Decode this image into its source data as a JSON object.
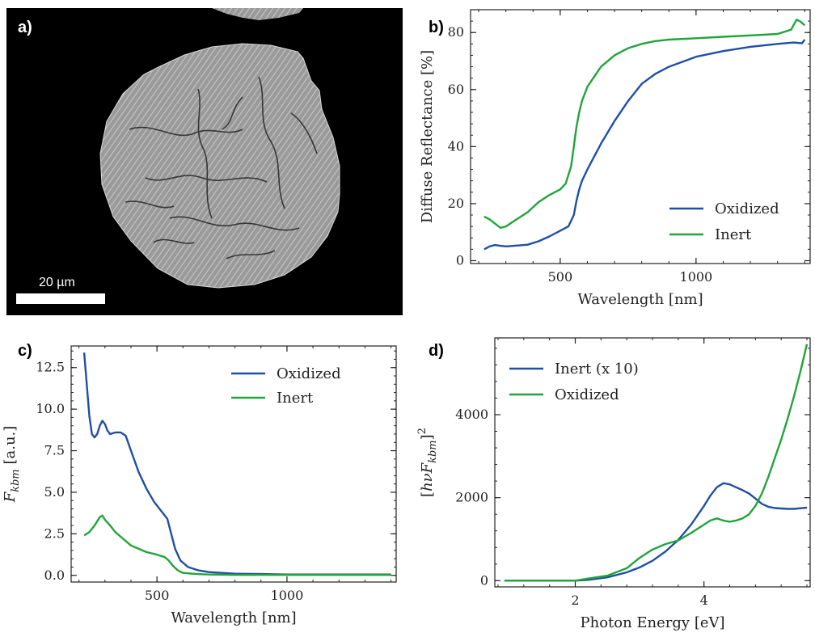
{
  "panels": [
    {
      "id": "a",
      "label": "a)"
    },
    {
      "id": "b",
      "label": "b)"
    },
    {
      "id": "c",
      "label": "c)"
    },
    {
      "id": "d",
      "label": "d)"
    }
  ],
  "micrograph": {
    "scale_bar_label": "20 µm"
  },
  "colors": {
    "oxidized": "#1f4fa5",
    "inert": "#22a43a",
    "axis": "#222222"
  },
  "chart_data": [
    {
      "panel": "b",
      "type": "line",
      "xlabel": "Wavelength [nm]",
      "ylabel": "Diffuse Reflectance [%]",
      "xlim": [
        170,
        1420
      ],
      "ylim": [
        -1,
        88
      ],
      "xticks": [
        500,
        1000
      ],
      "yticks": [
        0,
        20,
        40,
        60,
        80
      ],
      "legend_position": "bottom-right",
      "series": [
        {
          "name": "Oxidized",
          "color": "#1f4fa5",
          "x": [
            220,
            240,
            260,
            280,
            300,
            340,
            380,
            420,
            460,
            500,
            530,
            550,
            560,
            570,
            580,
            600,
            650,
            700,
            750,
            800,
            850,
            900,
            1000,
            1100,
            1200,
            1300,
            1360,
            1390,
            1400
          ],
          "y": [
            4,
            5,
            5.5,
            5.2,
            5,
            5.3,
            5.6,
            6.8,
            8.5,
            10.5,
            12,
            16,
            21,
            25,
            28,
            32,
            41,
            49,
            56,
            62,
            65.5,
            68,
            71.5,
            73.5,
            75,
            76,
            76.5,
            76.2,
            77.5
          ]
        },
        {
          "name": "Inert",
          "color": "#22a43a",
          "x": [
            220,
            240,
            260,
            280,
            300,
            340,
            380,
            420,
            460,
            500,
            520,
            540,
            550,
            560,
            570,
            580,
            600,
            650,
            700,
            750,
            800,
            850,
            900,
            1000,
            1100,
            1200,
            1300,
            1350,
            1370,
            1385,
            1400
          ],
          "y": [
            15.5,
            14.5,
            13,
            11.5,
            12,
            14.5,
            17,
            20.5,
            23,
            25,
            27,
            33,
            40,
            47,
            52,
            56,
            61,
            68,
            72,
            74.5,
            76,
            77,
            77.5,
            78,
            78.5,
            79,
            79.5,
            81,
            84.5,
            83.8,
            82.5
          ]
        }
      ]
    },
    {
      "panel": "c",
      "type": "line",
      "xlabel": "Wavelength [nm]",
      "ylabel": "F_kbm [a.u.]",
      "xlim": [
        170,
        1420
      ],
      "ylim": [
        -0.4,
        13.8
      ],
      "xticks": [
        500,
        1000
      ],
      "yticks": [
        0.0,
        2.5,
        5.0,
        7.5,
        10.0,
        12.5
      ],
      "ytick_labels": [
        "0.0",
        "2.5",
        "5.0",
        "7.5",
        "10.0",
        "12.5"
      ],
      "legend_position": "top-right",
      "series": [
        {
          "name": "Oxidized",
          "color": "#1f4fa5",
          "x": [
            220,
            230,
            240,
            250,
            260,
            270,
            280,
            290,
            300,
            310,
            320,
            340,
            360,
            380,
            400,
            430,
            460,
            490,
            520,
            540,
            555,
            570,
            590,
            620,
            660,
            700,
            800,
            900,
            1000,
            1200,
            1400
          ],
          "y": [
            13.4,
            11.5,
            9.6,
            8.5,
            8.3,
            8.5,
            9.0,
            9.3,
            9.1,
            8.7,
            8.5,
            8.6,
            8.6,
            8.4,
            7.5,
            6.2,
            5.2,
            4.4,
            3.8,
            3.4,
            2.5,
            1.6,
            0.9,
            0.5,
            0.3,
            0.2,
            0.1,
            0.08,
            0.05,
            0.05,
            0.05
          ]
        },
        {
          "name": "Inert",
          "color": "#22a43a",
          "x": [
            220,
            240,
            260,
            280,
            290,
            300,
            320,
            340,
            370,
            400,
            430,
            460,
            500,
            530,
            545,
            560,
            580,
            600,
            650,
            700,
            800,
            1000,
            1200,
            1400
          ],
          "y": [
            2.4,
            2.6,
            3.0,
            3.5,
            3.6,
            3.35,
            3.0,
            2.6,
            2.2,
            1.8,
            1.6,
            1.4,
            1.25,
            1.1,
            0.9,
            0.6,
            0.3,
            0.15,
            0.08,
            0.05,
            0.03,
            0.03,
            0.03,
            0.03
          ]
        }
      ]
    },
    {
      "panel": "d",
      "type": "line",
      "xlabel": "Photon Energy [eV]",
      "ylabel": "[hνF_kbm]²",
      "xlim": [
        0.75,
        5.65
      ],
      "ylim": [
        -150,
        5850
      ],
      "xticks": [
        2,
        4
      ],
      "yticks": [
        0,
        2000,
        4000
      ],
      "legend_position": "top-left",
      "series": [
        {
          "name": "Inert (x 10)",
          "color": "#1f4fa5",
          "x": [
            0.9,
            1.5,
            2.0,
            2.2,
            2.5,
            2.8,
            3.0,
            3.2,
            3.4,
            3.6,
            3.8,
            4.0,
            4.1,
            4.2,
            4.3,
            4.4,
            4.5,
            4.6,
            4.7,
            4.8,
            4.9,
            5.0,
            5.1,
            5.2,
            5.3,
            5.4,
            5.5,
            5.6
          ],
          "y": [
            0,
            0,
            0,
            20,
            80,
            200,
            320,
            480,
            700,
            980,
            1350,
            1800,
            2050,
            2250,
            2350,
            2320,
            2250,
            2180,
            2100,
            1980,
            1850,
            1780,
            1750,
            1740,
            1730,
            1730,
            1745,
            1760
          ]
        },
        {
          "name": "Oxidized",
          "color": "#22a43a",
          "x": [
            0.9,
            1.5,
            2.0,
            2.2,
            2.5,
            2.8,
            3.0,
            3.2,
            3.4,
            3.6,
            3.8,
            4.0,
            4.1,
            4.2,
            4.3,
            4.4,
            4.5,
            4.6,
            4.7,
            4.8,
            4.9,
            5.0,
            5.1,
            5.2,
            5.3,
            5.4,
            5.5,
            5.6
          ],
          "y": [
            0,
            0,
            0,
            50,
            120,
            300,
            550,
            750,
            880,
            970,
            1150,
            1350,
            1450,
            1500,
            1450,
            1420,
            1450,
            1500,
            1600,
            1800,
            2100,
            2500,
            2950,
            3400,
            3900,
            4450,
            5050,
            5700
          ]
        }
      ]
    }
  ]
}
